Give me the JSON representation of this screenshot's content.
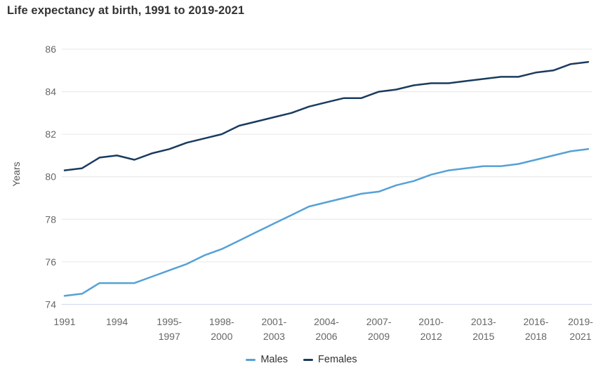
{
  "page": {
    "title": "Life expectancy at birth, 1991 to 2019-2021"
  },
  "chart_data": {
    "type": "line",
    "title": "Life expectancy at birth, 1991 to 2019-2021",
    "xlabel": "",
    "ylabel": "Years",
    "ylim": [
      74,
      86
    ],
    "yticks": [
      74,
      76,
      78,
      80,
      82,
      84,
      86
    ],
    "grid": "horizontal-gridlines",
    "legend_position": "bottom-center",
    "x_tick_labels": [
      "1991",
      "1994",
      "1995-1997",
      "1998-2000",
      "2001-2003",
      "2004-2006",
      "2007-2009",
      "2010-2012",
      "2013-2015",
      "2016-2018",
      "2019-2021"
    ],
    "points_per_tick": 3,
    "n_points": 31,
    "colors": {
      "males_line": "#55a1d6",
      "females_line": "#1b3b5f",
      "gridline": "#e6e6e6",
      "axis_line": "#ccd6eb",
      "tick_label": "#666666",
      "axis_title": "#555555",
      "chart_title": "#333333"
    },
    "series": [
      {
        "name": "Males",
        "color": "#55a1d6",
        "values": [
          74.4,
          74.5,
          75.0,
          75.0,
          75.0,
          75.3,
          75.6,
          75.9,
          76.3,
          76.6,
          77.0,
          77.4,
          77.8,
          78.2,
          78.6,
          78.8,
          79.0,
          79.2,
          79.3,
          79.6,
          79.8,
          80.1,
          80.3,
          80.4,
          80.5,
          80.5,
          80.6,
          80.8,
          81.0,
          81.2,
          81.3
        ]
      },
      {
        "name": "Females",
        "color": "#1b3b5f",
        "values": [
          80.3,
          80.4,
          80.9,
          81.0,
          80.8,
          81.1,
          81.3,
          81.6,
          81.8,
          82.0,
          82.4,
          82.6,
          82.8,
          83.0,
          83.3,
          83.5,
          83.7,
          83.7,
          84.0,
          84.1,
          84.3,
          84.4,
          84.4,
          84.5,
          84.6,
          84.7,
          84.7,
          84.9,
          85.0,
          85.3,
          85.4
        ]
      }
    ]
  }
}
